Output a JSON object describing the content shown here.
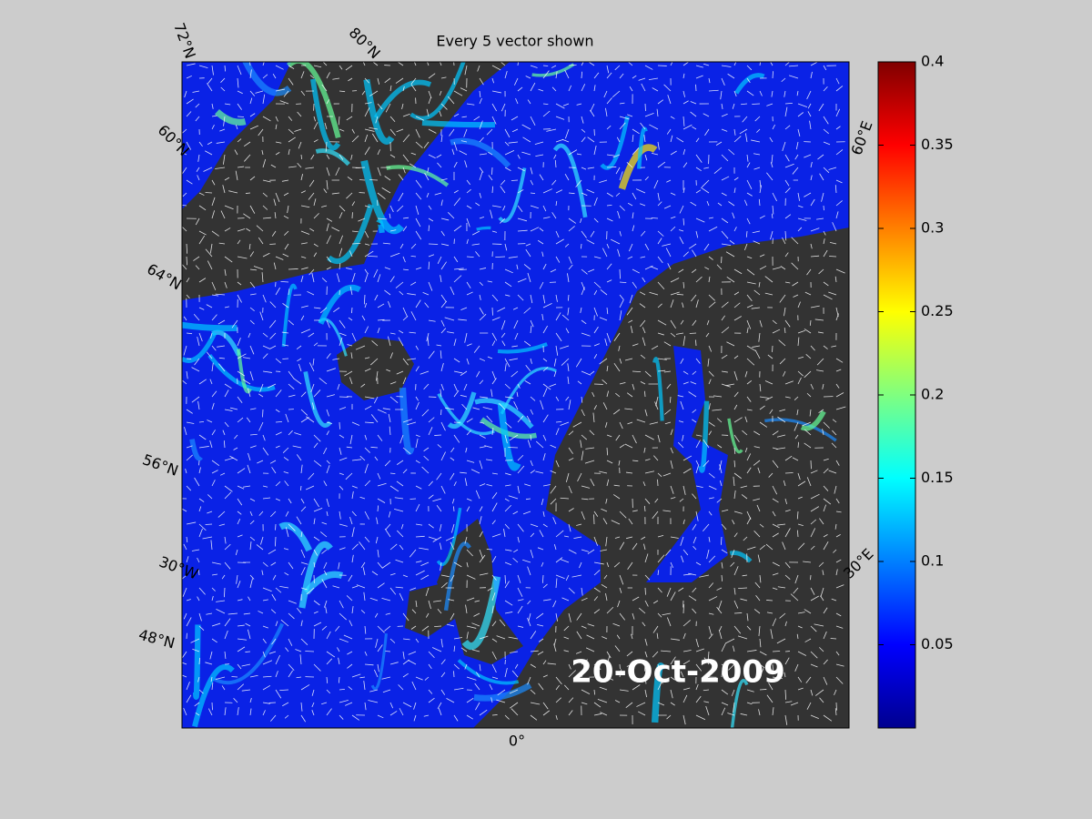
{
  "title": "Every 5 vector shown",
  "date_label": "20-Oct-2009",
  "graticule_labels": [
    "72°N",
    "80°N",
    "60°N",
    "64°N",
    "56°N",
    "30°W",
    "48°N",
    "0°",
    "30°E",
    "60°E"
  ],
  "colorbar": {
    "lim": [
      0,
      0.4
    ],
    "ticks": [
      0.05,
      0.1,
      0.15,
      0.2,
      0.25,
      0.3,
      0.35,
      0.4
    ],
    "colormap": "jet"
  }
}
